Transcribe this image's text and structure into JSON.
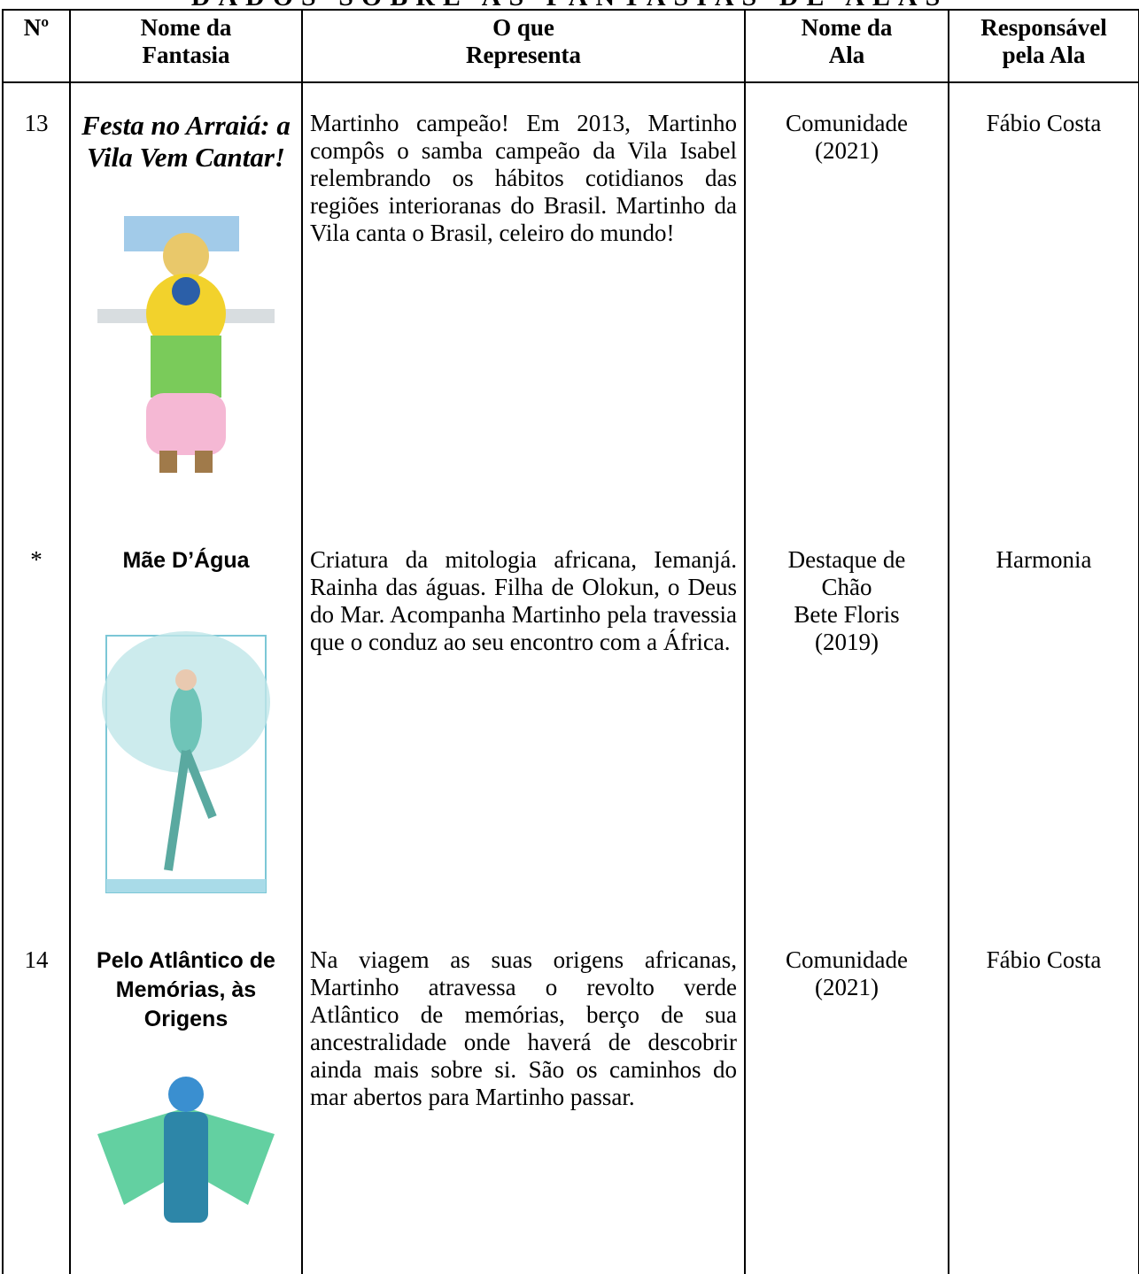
{
  "header": {
    "title": "DADOS SOBRE AS FANTASIAS DE ALAS"
  },
  "table": {
    "columns": [
      "Nº",
      "Nome da\nFantasia",
      "O que\nRepresenta",
      "Nome da\nAla",
      "Responsável\npela Ala"
    ],
    "rows": [
      [
        "13",
        "Festa no Arraiá: a Vila Vem Cantar!",
        "Martinho campeão! Em 2013, Martinho compôs o samba campeão da Vila Isabel relembrando os hábitos cotidianos das regiões interioranas do Brasil. Martinho da Vila canta o Brasil, celeiro do mundo!",
        "Comunidade\n(2021)",
        "Fábio Costa"
      ],
      [
        "*",
        "Mãe D’Água",
        "Criatura da mitologia africana, Iemanjá. Rainha das águas. Filha de Olokun, o Deus do Mar. Acompanha Martinho pela travessia que o conduz ao seu encontro com a África.",
        "Destaque de\nChão\nBete Floris\n(2019)",
        "Harmonia"
      ],
      [
        "14",
        "Pelo Atlântico de Memórias, às Origens",
        "Na viagem as suas origens africanas, Martinho atravessa o revolto verde Atlântico de memórias, berço de sua ancestralidade onde haverá de descobrir ainda mais sobre si. São os caminhos do mar abertos para Martinho passar.",
        "Comunidade\n(2021)",
        "Fábio Costa"
      ]
    ]
  }
}
